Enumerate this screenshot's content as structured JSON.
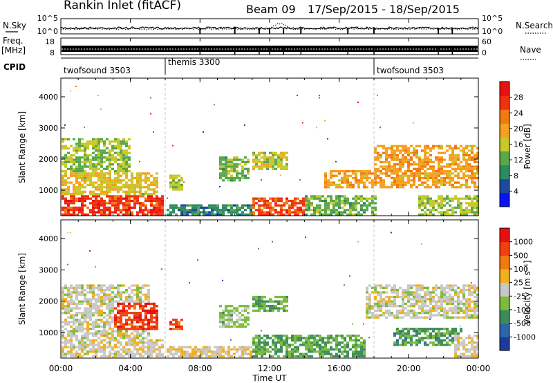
{
  "header": {
    "station": "Rankin Inlet (fitACF)",
    "beam": "Beam 09",
    "date_range": "17/Sep/2015 - 18/Sep/2015"
  },
  "params": {
    "nsky_label": "N.Sky",
    "nsearch_label": "N.Search",
    "freq_label": "Freq.",
    "freq_unit": "[MHz]",
    "nave_label": "Nave",
    "cpid_label": "CPID",
    "nsky_ticks": [
      "10^5",
      "10^0"
    ],
    "nsearch_ticks": [
      "10^5",
      "10^0"
    ],
    "freq_ticks": [
      "18",
      "8"
    ],
    "nave_ticks": [
      "60",
      "0"
    ]
  },
  "cpid": [
    {
      "label": "twofsound 3503",
      "start": 0
    },
    {
      "label": "themis 3300",
      "start": 6
    },
    {
      "label": "twofsound 3503",
      "start": 18
    }
  ],
  "axes": {
    "xlabel": "Time UT",
    "ylabel": "Slant Range [km]",
    "xticks": [
      "00:00",
      "04:00",
      "08:00",
      "12:00",
      "16:00",
      "20:00",
      "00:00"
    ],
    "yticks": [
      "1000",
      "2000",
      "3000",
      "4000"
    ]
  },
  "colorbars": {
    "power": {
      "label": "Power [dB]",
      "ticks": [
        "4",
        "8",
        "12",
        "16",
        "20",
        "24",
        "28"
      ],
      "colors": [
        "#0a14f0",
        "#1e4a9c",
        "#2e8a62",
        "#5aa84a",
        "#c8c82a",
        "#f5a020",
        "#f07a10",
        "#f03010",
        "#e81010"
      ]
    },
    "velocity": {
      "label": "Velocity [m s⁻¹]",
      "ticks": [
        "1000",
        "500",
        "100",
        "25",
        "-25",
        "-100",
        "-500",
        "-1000"
      ],
      "colors": [
        "#1c3c9c",
        "#2e64a8",
        "#3c8c5a",
        "#7cbc3c",
        "#c8c8c8",
        "#f0b020",
        "#f07a10",
        "#f04010",
        "#e81010"
      ]
    }
  },
  "chart_data": [
    {
      "type": "heatmap",
      "name": "power",
      "x_unit": "hours UT",
      "y_unit": "km",
      "xlim": [
        0,
        24
      ],
      "ylim": [
        180,
        4600
      ],
      "clim": [
        0,
        32
      ],
      "regions": [
        {
          "t": [
            0.0,
            5.8
          ],
          "r": [
            180,
            900
          ],
          "v": 27
        },
        {
          "t": [
            0.0,
            5.5
          ],
          "r": [
            900,
            1600
          ],
          "v": 17
        },
        {
          "t": [
            0.0,
            4.0
          ],
          "r": [
            1600,
            2700
          ],
          "v": 14
        },
        {
          "t": [
            6.2,
            6.9
          ],
          "r": [
            1000,
            1500
          ],
          "v": 15
        },
        {
          "t": [
            6.0,
            11.0
          ],
          "r": [
            180,
            600
          ],
          "v": 9
        },
        {
          "t": [
            9.0,
            10.8
          ],
          "r": [
            1300,
            2100
          ],
          "v": 13
        },
        {
          "t": [
            11.0,
            13.0
          ],
          "r": [
            1700,
            2300
          ],
          "v": 16
        },
        {
          "t": [
            11.0,
            14.5
          ],
          "r": [
            180,
            800
          ],
          "v": 26
        },
        {
          "t": [
            14.0,
            18.0
          ],
          "r": [
            180,
            900
          ],
          "v": 13
        },
        {
          "t": [
            15.0,
            24.0
          ],
          "r": [
            1100,
            1700
          ],
          "v": 20
        },
        {
          "t": [
            18.0,
            24.0
          ],
          "r": [
            1700,
            2500
          ],
          "v": 20
        },
        {
          "t": [
            20.5,
            24.0
          ],
          "r": [
            180,
            900
          ],
          "v": 15
        }
      ]
    },
    {
      "type": "heatmap",
      "name": "velocity",
      "x_unit": "hours UT",
      "y_unit": "km",
      "xlim": [
        0,
        24
      ],
      "ylim": [
        180,
        4600
      ],
      "clim": [
        -1000,
        1000
      ],
      "regions": [
        {
          "t": [
            0.0,
            5.8
          ],
          "r": [
            180,
            800
          ],
          "v": 50
        },
        {
          "t": [
            0.0,
            5.0
          ],
          "r": [
            800,
            2600
          ],
          "v": 0
        },
        {
          "t": [
            3.0,
            5.5
          ],
          "r": [
            1100,
            2000
          ],
          "v": 700
        },
        {
          "t": [
            6.2,
            6.9
          ],
          "r": [
            1100,
            1500
          ],
          "v": 700
        },
        {
          "t": [
            6.0,
            11.0
          ],
          "r": [
            180,
            600
          ],
          "v": 80
        },
        {
          "t": [
            9.0,
            10.8
          ],
          "r": [
            1200,
            1900
          ],
          "v": -200
        },
        {
          "t": [
            11.0,
            13.0
          ],
          "r": [
            1700,
            2200
          ],
          "v": -300
        },
        {
          "t": [
            11.0,
            17.5
          ],
          "r": [
            180,
            1000
          ],
          "v": -350
        },
        {
          "t": [
            17.5,
            24.0
          ],
          "r": [
            1500,
            2600
          ],
          "v": 0
        },
        {
          "t": [
            19.0,
            23.0
          ],
          "r": [
            600,
            1200
          ],
          "v": -400
        },
        {
          "t": [
            22.5,
            24.0
          ],
          "r": [
            180,
            1000
          ],
          "v": 60
        }
      ]
    }
  ]
}
